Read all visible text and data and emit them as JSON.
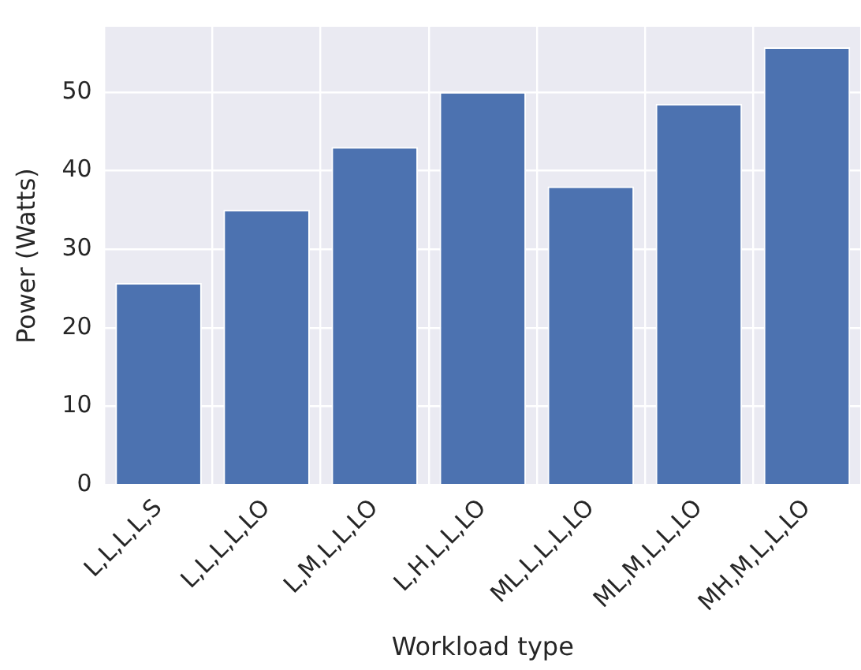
{
  "chart_data": {
    "type": "bar",
    "xlabel": "Workload type",
    "ylabel": "Power (Watts)",
    "categories": [
      "L,L,L,L,S",
      "L,L,L,L,LO",
      "L,M,L,L,LO",
      "L,H,L,L,LO",
      "ML,L,L,L,LO",
      "ML,M,L,L,LO",
      "MH,M,L,L,LO"
    ],
    "values": [
      25.7,
      35,
      43,
      50,
      38,
      48.5,
      55.7
    ],
    "color": "#4c72b0",
    "ylim": [
      0,
      58.3
    ],
    "yticks": [
      0,
      10,
      20,
      30,
      40,
      50
    ],
    "grid": true
  }
}
